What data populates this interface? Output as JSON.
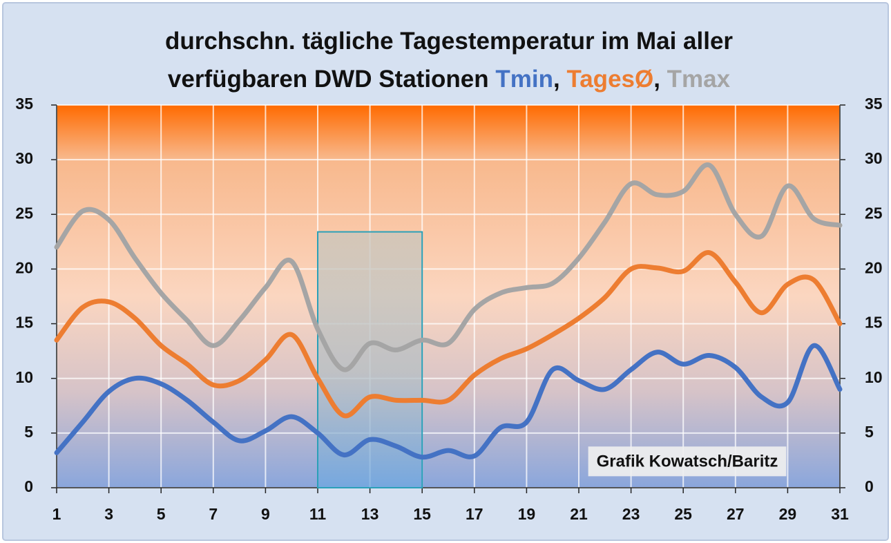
{
  "chart_data": {
    "type": "line",
    "title_lines": [
      [
        {
          "text": "durchschn. tägliche Tagestemperatur im Mai aller",
          "color": "#111111"
        }
      ],
      [
        {
          "text": "verfügbaren DWD Stationen ",
          "color": "#111111"
        },
        {
          "text": "Tmin",
          "color": "#4472c4"
        },
        {
          "text": ", ",
          "color": "#111111"
        },
        {
          "text": "TagesØ",
          "color": "#ed7d31"
        },
        {
          "text": ", ",
          "color": "#111111"
        },
        {
          "text": "Tmax",
          "color": "#a5a5a5"
        }
      ]
    ],
    "x": [
      1,
      2,
      3,
      4,
      5,
      6,
      7,
      8,
      9,
      10,
      11,
      12,
      13,
      14,
      15,
      16,
      17,
      18,
      19,
      20,
      21,
      22,
      23,
      24,
      25,
      26,
      27,
      28,
      29,
      30,
      31
    ],
    "series": [
      {
        "color": "#a5a5a5",
        "values": [
          22,
          25.3,
          24.5,
          21,
          17.8,
          15.3,
          13,
          15.3,
          18.3,
          20.7,
          14.5,
          10.8,
          13.2,
          12.6,
          13.5,
          13.2,
          16.3,
          17.8,
          18.3,
          18.7,
          21,
          24.3,
          27.8,
          26.8,
          27.1,
          29.5,
          25,
          23,
          27.6,
          24.6,
          24
        ]
      },
      {
        "color": "#ed7d31",
        "values": [
          13.5,
          16.5,
          17,
          15.5,
          13,
          11.3,
          9.4,
          9.8,
          11.7,
          14,
          10,
          6.6,
          8.3,
          8,
          8,
          8,
          10.3,
          11.8,
          12.7,
          14,
          15.5,
          17.4,
          20,
          20.1,
          19.8,
          21.5,
          18.8,
          16,
          18.6,
          19,
          15
        ]
      },
      {
        "color": "#4472c4",
        "values": [
          3.2,
          6,
          8.8,
          10,
          9.5,
          8,
          6,
          4.3,
          5.2,
          6.5,
          5,
          3,
          4.4,
          3.8,
          2.8,
          3.4,
          2.9,
          5.5,
          6,
          10.8,
          9.8,
          9,
          10.8,
          12.4,
          11.3,
          12.1,
          11,
          8.3,
          7.8,
          13,
          9
        ]
      }
    ],
    "xlim": [
      1,
      31
    ],
    "xticks": [
      1,
      3,
      5,
      7,
      9,
      11,
      13,
      15,
      17,
      19,
      21,
      23,
      25,
      27,
      29,
      31
    ],
    "ylim": [
      0,
      35
    ],
    "yticks": [
      0,
      5,
      10,
      15,
      20,
      25,
      30,
      35
    ],
    "y2lim": [
      0,
      35
    ],
    "y2ticks": [
      0,
      5,
      10,
      15,
      20,
      25,
      30,
      35
    ],
    "grid": true,
    "highlight": {
      "xlim": [
        11,
        15
      ],
      "ylim": [
        0,
        23.4
      ]
    },
    "annotation": "Grafik Kowatsch/Baritz"
  }
}
